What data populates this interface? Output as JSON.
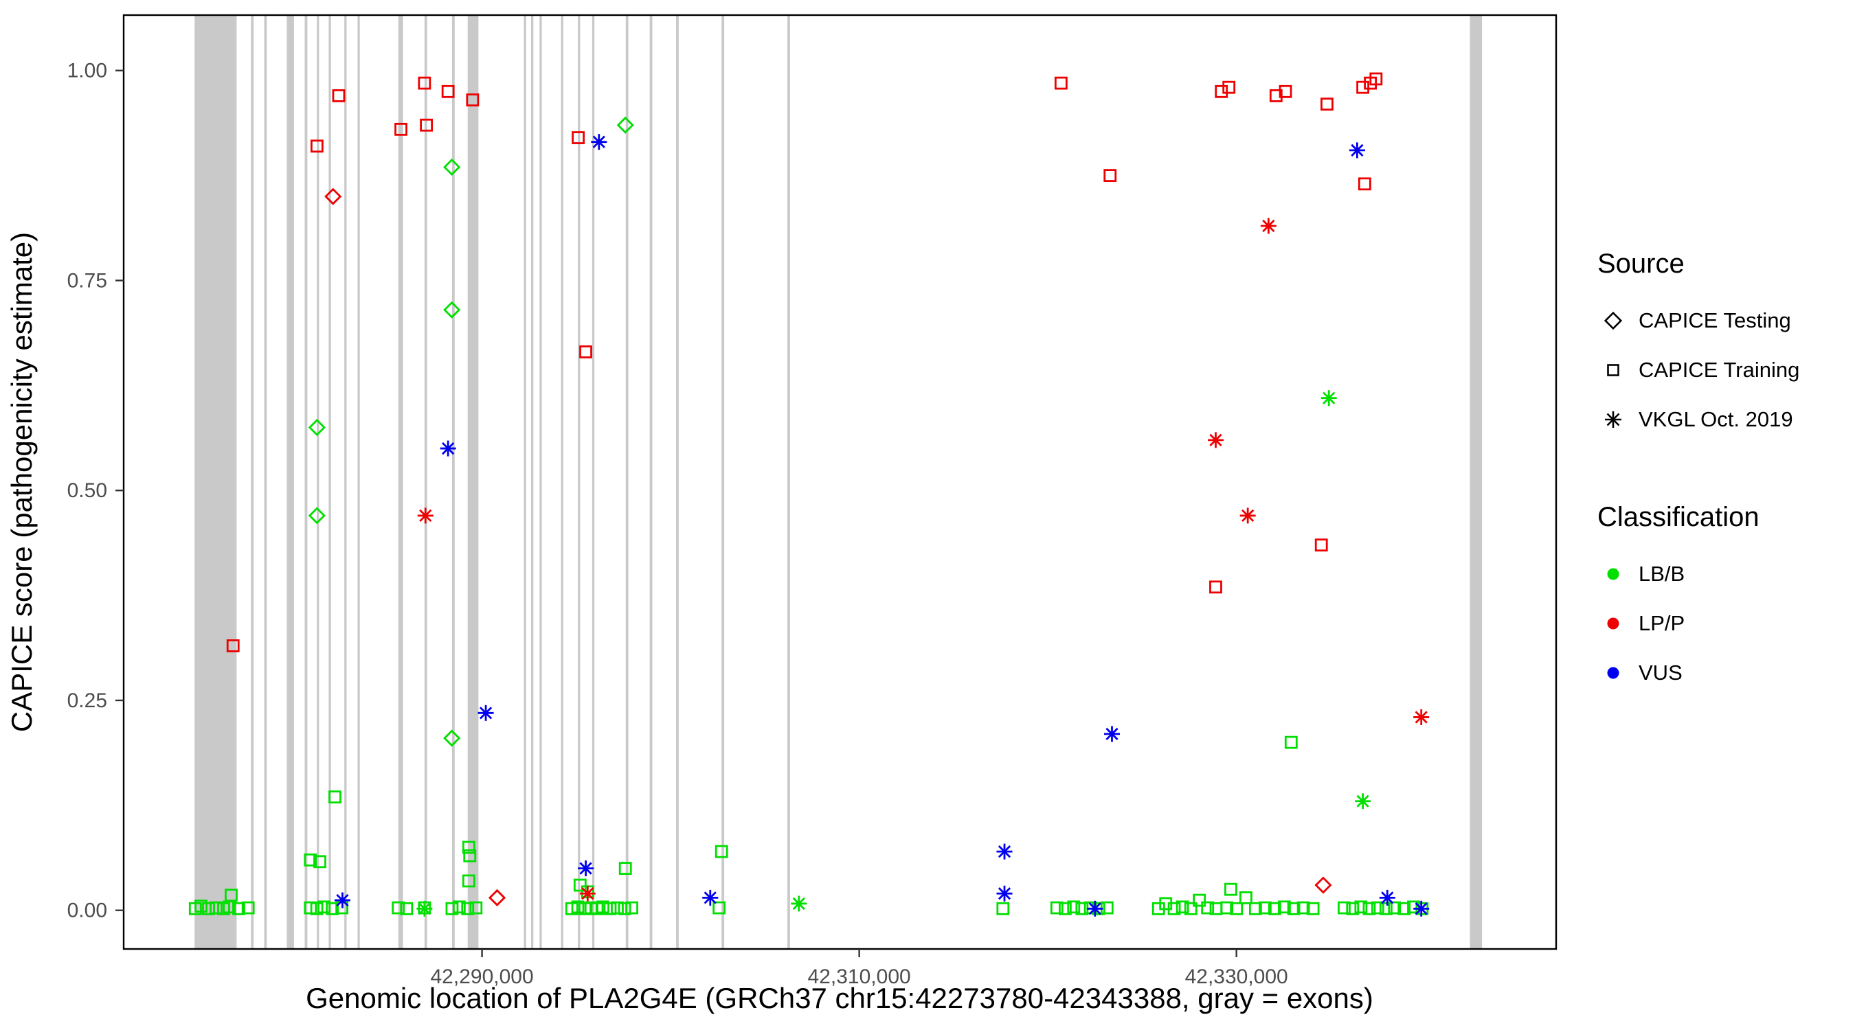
{
  "axes": {
    "x": {
      "label": "Genomic location of PLA2G4E (GRCh37 chr15:42273780-42343388, gray = exons)",
      "ticks": [
        42290000,
        42310000,
        42330000
      ],
      "tick_labels": [
        "42,290,000",
        "42,310,000",
        "42,330,000"
      ]
    },
    "y": {
      "label": "CAPICE score (pathogenicity estimate)",
      "ticks": [
        0,
        0.25,
        0.5,
        0.75,
        1.0
      ],
      "tick_labels": [
        "0.00",
        "0.25",
        "0.50",
        "0.75",
        "1.00"
      ]
    }
  },
  "legend": {
    "source": {
      "title": "Source",
      "items": [
        {
          "label": "CAPICE Testing",
          "marker": "diamond"
        },
        {
          "label": "CAPICE Training",
          "marker": "square"
        },
        {
          "label": "VKGL Oct. 2019",
          "marker": "asterisk"
        }
      ]
    },
    "classification": {
      "title": "Classification",
      "items": [
        {
          "label": "LB/B",
          "color": "#00DF00"
        },
        {
          "label": "LP/P",
          "color": "#EE0000"
        },
        {
          "label": "VUS",
          "color": "#0000EE"
        }
      ]
    }
  },
  "colors": {
    "LB/B": "#00DF00",
    "LP/P": "#EE0000",
    "VUS": "#0000EE",
    "exon": "#C9C9C9",
    "border": "#000000"
  },
  "chart_data": {
    "type": "scatter",
    "title": "",
    "xlabel": "Genomic location of PLA2G4E (GRCh37 chr15:42273780-42343388, gray = exons)",
    "ylabel": "CAPICE score (pathogenicity estimate)",
    "x_domain": [
      42271000,
      42346950
    ],
    "y_domain": [
      -0.046,
      1.066
    ],
    "grid": false,
    "legend_position": "right",
    "exons": [
      [
        42274760,
        2230
      ],
      [
        42277750,
        140
      ],
      [
        42278450,
        140
      ],
      [
        42279650,
        380
      ],
      [
        42280600,
        140
      ],
      [
        42281240,
        120
      ],
      [
        42281870,
        120
      ],
      [
        42282700,
        120
      ],
      [
        42283400,
        120
      ],
      [
        42285560,
        250
      ],
      [
        42286950,
        140
      ],
      [
        42288410,
        140
      ],
      [
        42289240,
        570
      ],
      [
        42292220,
        120
      ],
      [
        42292600,
        120
      ],
      [
        42293050,
        120
      ],
      [
        42294190,
        120
      ],
      [
        42295080,
        120
      ],
      [
        42295840,
        120
      ],
      [
        42297620,
        140
      ],
      [
        42298890,
        140
      ],
      [
        42300290,
        140
      ],
      [
        42302700,
        140
      ],
      [
        42306190,
        140
      ],
      [
        42342380,
        640
      ]
    ],
    "series": [
      {
        "name": "CAPICE Training LB/B",
        "source": "CAPICE Training",
        "marker": "square",
        "class": "LB/B",
        "points": [
          [
            42274800,
            0.002
          ],
          [
            42275100,
            0.005
          ],
          [
            42275500,
            0.002
          ],
          [
            42275900,
            0.003
          ],
          [
            42276300,
            0.002
          ],
          [
            42276600,
            0.004
          ],
          [
            42276700,
            0.018
          ],
          [
            42277100,
            0.002
          ],
          [
            42277600,
            0.003
          ],
          [
            42280900,
            0.06
          ],
          [
            42280900,
            0.003
          ],
          [
            42281240,
            0.002
          ],
          [
            42281400,
            0.058
          ],
          [
            42281620,
            0.004
          ],
          [
            42282060,
            0.002
          ],
          [
            42282200,
            0.135
          ],
          [
            42282570,
            0.003
          ],
          [
            42285560,
            0.003
          ],
          [
            42286000,
            0.002
          ],
          [
            42286950,
            0.003
          ],
          [
            42288410,
            0.002
          ],
          [
            42288790,
            0.004
          ],
          [
            42289240,
            0.002
          ],
          [
            42289300,
            0.075
          ],
          [
            42289350,
            0.065
          ],
          [
            42289300,
            0.035
          ],
          [
            42289680,
            0.003
          ],
          [
            42294760,
            0.002
          ],
          [
            42295080,
            0.004
          ],
          [
            42295200,
            0.03
          ],
          [
            42295460,
            0.002
          ],
          [
            42295600,
            0.022
          ],
          [
            42295780,
            0.003
          ],
          [
            42296100,
            0.002
          ],
          [
            42296410,
            0.004
          ],
          [
            42296790,
            0.002
          ],
          [
            42297170,
            0.003
          ],
          [
            42297560,
            0.002
          ],
          [
            42297600,
            0.05
          ],
          [
            42297940,
            0.003
          ],
          [
            42302570,
            0.003
          ],
          [
            42302700,
            0.07
          ],
          [
            42317620,
            0.002
          ],
          [
            42320480,
            0.003
          ],
          [
            42320920,
            0.002
          ],
          [
            42321370,
            0.004
          ],
          [
            42321810,
            0.002
          ],
          [
            42322260,
            0.003
          ],
          [
            42322700,
            0.002
          ],
          [
            42323140,
            0.003
          ],
          [
            42325870,
            0.002
          ],
          [
            42326250,
            0.008
          ],
          [
            42326700,
            0.002
          ],
          [
            42327140,
            0.004
          ],
          [
            42327580,
            0.002
          ],
          [
            42328030,
            0.012
          ],
          [
            42328470,
            0.003
          ],
          [
            42328920,
            0.002
          ],
          [
            42329490,
            0.003
          ],
          [
            42329700,
            0.025
          ],
          [
            42330000,
            0.002
          ],
          [
            42330500,
            0.015
          ],
          [
            42331010,
            0.002
          ],
          [
            42331520,
            0.003
          ],
          [
            42332030,
            0.002
          ],
          [
            42332540,
            0.004
          ],
          [
            42332900,
            0.2
          ],
          [
            42333040,
            0.002
          ],
          [
            42333550,
            0.003
          ],
          [
            42334060,
            0.002
          ],
          [
            42335710,
            0.003
          ],
          [
            42336160,
            0.002
          ],
          [
            42336600,
            0.004
          ],
          [
            42337040,
            0.002
          ],
          [
            42337490,
            0.003
          ],
          [
            42337930,
            0.002
          ],
          [
            42338380,
            0.003
          ],
          [
            42338890,
            0.002
          ],
          [
            42339390,
            0.004
          ],
          [
            42339840,
            0.002
          ]
        ]
      },
      {
        "name": "CAPICE Training LP/P",
        "source": "CAPICE Training",
        "marker": "square",
        "class": "LP/P",
        "points": [
          [
            42276800,
            0.315
          ],
          [
            42281250,
            0.91
          ],
          [
            42282400,
            0.97
          ],
          [
            42285700,
            0.93
          ],
          [
            42286950,
            0.985
          ],
          [
            42287050,
            0.935
          ],
          [
            42288200,
            0.975
          ],
          [
            42289500,
            0.965
          ],
          [
            42295100,
            0.92
          ],
          [
            42295500,
            0.665
          ],
          [
            42320700,
            0.985
          ],
          [
            42323300,
            0.875
          ],
          [
            42328900,
            0.385
          ],
          [
            42329200,
            0.975
          ],
          [
            42329600,
            0.98
          ],
          [
            42332100,
            0.97
          ],
          [
            42332600,
            0.975
          ],
          [
            42334500,
            0.435
          ],
          [
            42334800,
            0.96
          ],
          [
            42336700,
            0.98
          ],
          [
            42336800,
            0.865
          ],
          [
            42337100,
            0.985
          ],
          [
            42337400,
            0.99
          ]
        ]
      },
      {
        "name": "CAPICE Testing LB/B",
        "source": "CAPICE Testing",
        "marker": "diamond",
        "class": "LB/B",
        "points": [
          [
            42281250,
            0.575
          ],
          [
            42281250,
            0.47
          ],
          [
            42288400,
            0.885
          ],
          [
            42288400,
            0.715
          ],
          [
            42288400,
            0.205
          ],
          [
            42297600,
            0.935
          ]
        ]
      },
      {
        "name": "CAPICE Testing LP/P",
        "source": "CAPICE Testing",
        "marker": "diamond",
        "class": "LP/P",
        "points": [
          [
            42282100,
            0.85
          ],
          [
            42290800,
            0.015
          ],
          [
            42334600,
            0.03
          ]
        ]
      },
      {
        "name": "VKGL Oct. 2019 LB/B",
        "source": "VKGL Oct. 2019",
        "marker": "asterisk",
        "class": "LB/B",
        "points": [
          [
            42286950,
            0.002
          ],
          [
            42306800,
            0.008
          ],
          [
            42334900,
            0.61
          ],
          [
            42336700,
            0.13
          ]
        ]
      },
      {
        "name": "VKGL Oct. 2019 VUS",
        "source": "VKGL Oct. 2019",
        "marker": "asterisk",
        "class": "VUS",
        "points": [
          [
            42282600,
            0.012
          ],
          [
            42288200,
            0.55
          ],
          [
            42290200,
            0.235
          ],
          [
            42295500,
            0.05
          ],
          [
            42296200,
            0.915
          ],
          [
            42302100,
            0.015
          ],
          [
            42317700,
            0.07
          ],
          [
            42317700,
            0.02
          ],
          [
            42322500,
            0.002
          ],
          [
            42323400,
            0.21
          ],
          [
            42336400,
            0.905
          ],
          [
            42338000,
            0.015
          ],
          [
            42339800,
            0.002
          ]
        ]
      },
      {
        "name": "VKGL Oct. 2019 LP/P",
        "source": "VKGL Oct. 2019",
        "marker": "asterisk",
        "class": "LP/P",
        "points": [
          [
            42287000,
            0.47
          ],
          [
            42295600,
            0.02
          ],
          [
            42328900,
            0.56
          ],
          [
            42330600,
            0.47
          ],
          [
            42331700,
            0.815
          ],
          [
            42339800,
            0.23
          ]
        ]
      }
    ]
  }
}
